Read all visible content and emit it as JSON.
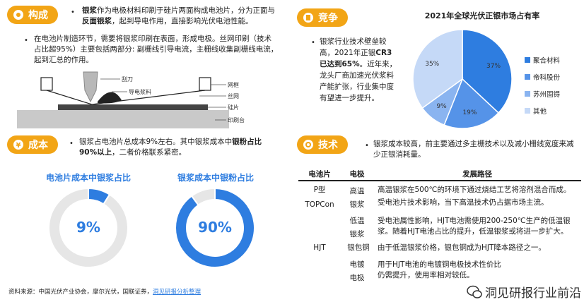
{
  "sections": {
    "composition": {
      "tag": "构成",
      "p1_a": "银浆",
      "p1_b": "作为电极材料印刷于硅片两面构成电池片，分为正面与",
      "p1_c": "反面银浆",
      "p1_d": "，起到导电作用，直接影响光伏电池性能。",
      "p2": "在电池片制造环节，需要将银浆印刷在表面，形成电极。丝网印刷（技术占比超95%）主要包括两部分: 副栅线引导电流，主栅线收集副栅线电流，起到汇总的作用。"
    },
    "diagram": {
      "labels": [
        "刮刀",
        "导电浆料",
        "网框",
        "丝网",
        "硅片",
        "印刷台"
      ]
    },
    "cost": {
      "tag": "成本",
      "text_a": "银浆占电池片总成本9%左右。其中银浆成本中",
      "text_b": "银粉占比90%以上",
      "text_c": "，二者价格联系紧密。"
    },
    "competition": {
      "tag": "竞争",
      "text_a": "银浆行业技术壁垒较高，2021年正银",
      "text_b": "CR3已达到65%",
      "text_c": "。近年来，龙头厂商加速光伏浆料产能扩张，行业集中度有望进一步提升。"
    },
    "technology": {
      "tag": "技术",
      "text": "银浆成本较高，前主要通过多主栅技术以及减小栅线宽度来减少正银消耗量。"
    }
  },
  "tech_table": {
    "headers": [
      "电池片",
      "电极",
      "发展路径"
    ],
    "cells": {
      "cell_p": "P型",
      "cell_topcon": "TOPCon",
      "cell_ht": "高温",
      "cell_silver1": "银浆",
      "path1": "高温银浆在500℃的环境下通过烧结工艺将溶剂混合而成。",
      "path2": "受电池片技术影响，当下高温技术仍占据市场主流。",
      "cell_hjt": "HJT",
      "cell_lt": "低温",
      "cell_silver2": "银浆",
      "path3": "受电池属性影响，HJT电池需使用200-250℃生产的低温银浆。随着HJT电池占比的提升，低温银浆或将进一步扩大。",
      "cell_cu": "银包铜",
      "path4": "由于低温银浆价格，银包铜成为HJT降本路径之一。",
      "cell_ep": "电镀",
      "cell_el": "电极",
      "path5": "用于HJT电池的电镀铜电极技术性价比仍需提升，使用率相对较低。"
    }
  },
  "chart_data": [
    {
      "type": "pie",
      "title": "电池片成本中银浆占比",
      "categories": [
        "",
        ""
      ],
      "values": [
        9,
        91
      ],
      "center_label": "9%",
      "colors": [
        "#2e7de0",
        "#e6e6e6"
      ]
    },
    {
      "type": "pie",
      "title": "银浆成本中银粉占比",
      "categories": [
        "",
        ""
      ],
      "values": [
        90,
        10
      ],
      "center_label": "90%",
      "colors": [
        "#2e7de0",
        "#e6e6e6"
      ]
    },
    {
      "type": "pie",
      "title": "2021年全球光伏正银市场占有率",
      "categories": [
        "聚合材料",
        "帝科股份",
        "苏州固锝",
        "其他"
      ],
      "values": [
        37,
        19,
        9,
        35
      ],
      "data_labels": [
        "37%",
        "19%",
        "9%",
        "35%"
      ],
      "colors": [
        "#2e7de0",
        "#5593e8",
        "#8ab4f0",
        "#c5d9f7"
      ],
      "legend_position": "right"
    }
  ],
  "footer": {
    "source": "资料来源：中国光伏产业协会，摩尔光伏，国联证券，",
    "source_link": "洞见研报分析整理",
    "watermark": "洞见研报行业前沿"
  }
}
